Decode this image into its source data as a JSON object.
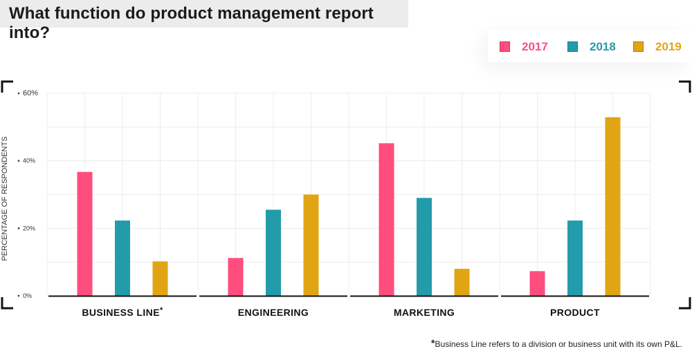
{
  "chart_data": {
    "type": "bar",
    "title": "What function do product management report into?",
    "ylabel": "PERCENTAGE OF RESPONDENTS",
    "ylim": [
      0,
      60
    ],
    "yticks": [
      {
        "value": 0,
        "label": "0%"
      },
      {
        "value": 20,
        "label": "20%"
      },
      {
        "value": 40,
        "label": "40%"
      },
      {
        "value": 60,
        "label": "60%"
      }
    ],
    "categories": [
      "BUSINESS LINE",
      "ENGINEERING",
      "MARKETING",
      "PRODUCT"
    ],
    "category_marks": [
      "*",
      "",
      "",
      ""
    ],
    "series": [
      {
        "name": "2017",
        "color": "#ff4d7e",
        "values": [
          36.7,
          11.2,
          45.2,
          7.3
        ]
      },
      {
        "name": "2018",
        "color": "#229cab",
        "values": [
          22.3,
          25.5,
          29.0,
          22.3
        ]
      },
      {
        "name": "2019",
        "color": "#e1a514",
        "values": [
          10.2,
          30.0,
          8.0,
          52.9
        ]
      }
    ],
    "grid": true,
    "legend_position": "top-right"
  },
  "footnote": {
    "mark": "*",
    "text": "Business Line refers to a division or business unit with its own P&L."
  }
}
